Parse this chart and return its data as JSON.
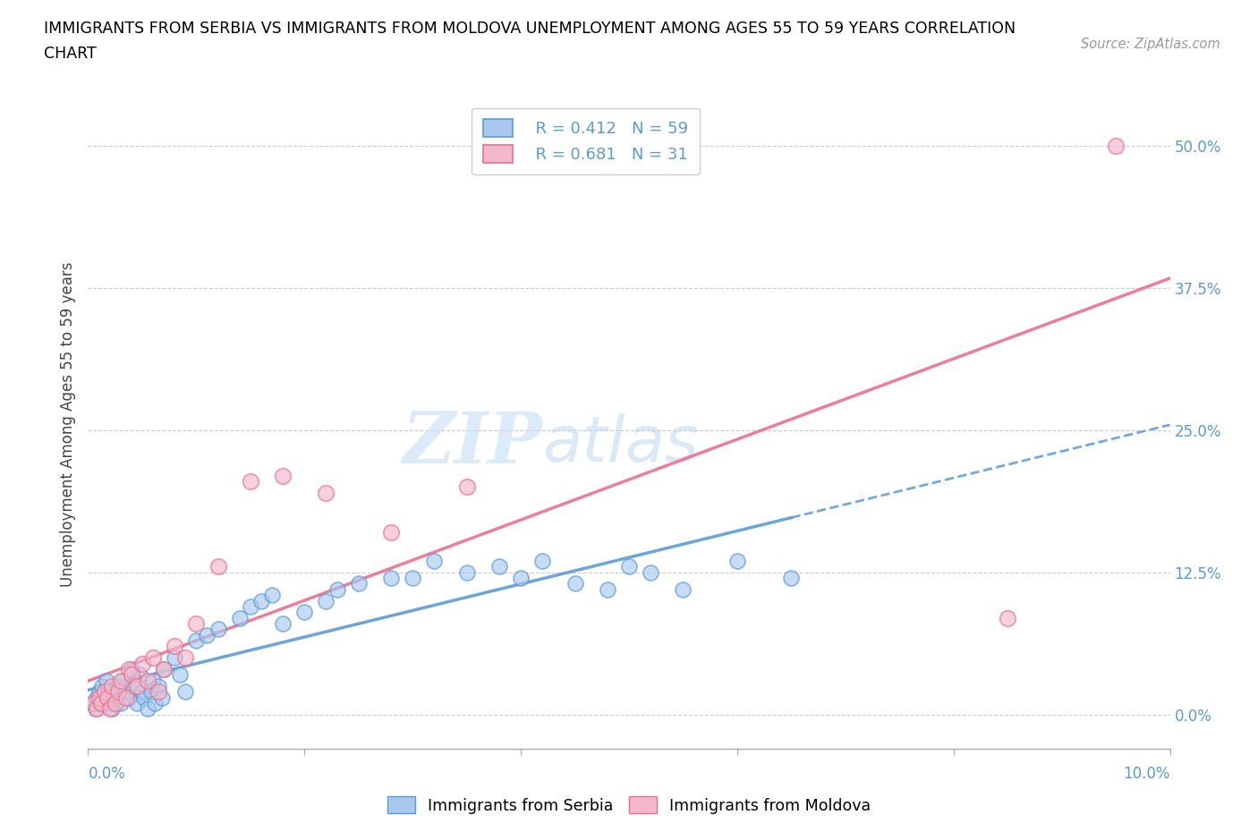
{
  "title_line1": "IMMIGRANTS FROM SERBIA VS IMMIGRANTS FROM MOLDOVA UNEMPLOYMENT AMONG AGES 55 TO 59 YEARS CORRELATION",
  "title_line2": "CHART",
  "source": "Source: ZipAtlas.com",
  "ylabel": "Unemployment Among Ages 55 to 59 years",
  "ytick_vals": [
    0.0,
    12.5,
    25.0,
    37.5,
    50.0
  ],
  "xlim": [
    0.0,
    10.0
  ],
  "ylim": [
    -3.0,
    54.0
  ],
  "watermark_zip": "ZIP",
  "watermark_atlas": "atlas",
  "legend_serbia_R": "R = 0.412",
  "legend_serbia_N": "N = 59",
  "legend_moldova_R": "R = 0.681",
  "legend_moldova_N": "N = 31",
  "color_serbia": "#a8c8f0",
  "color_moldova": "#f4b8cb",
  "color_serbia_line": "#5b9bd5",
  "color_moldova_line": "#e87090",
  "serbia_x": [
    0.05,
    0.07,
    0.08,
    0.1,
    0.12,
    0.13,
    0.15,
    0.17,
    0.18,
    0.2,
    0.22,
    0.25,
    0.27,
    0.3,
    0.32,
    0.35,
    0.38,
    0.4,
    0.42,
    0.45,
    0.48,
    0.5,
    0.52,
    0.55,
    0.58,
    0.6,
    0.62,
    0.65,
    0.68,
    0.7,
    0.8,
    0.85,
    0.9,
    1.0,
    1.1,
    1.2,
    1.4,
    1.5,
    1.6,
    1.7,
    1.8,
    2.0,
    2.2,
    2.3,
    2.5,
    2.8,
    3.0,
    3.2,
    3.5,
    3.8,
    4.0,
    4.2,
    4.5,
    4.8,
    5.0,
    5.2,
    5.5,
    6.0,
    6.5
  ],
  "serbia_y": [
    1.0,
    0.5,
    1.5,
    2.0,
    1.0,
    2.5,
    1.5,
    3.0,
    2.0,
    1.0,
    0.5,
    1.5,
    2.5,
    1.0,
    3.0,
    2.0,
    1.5,
    4.0,
    2.5,
    1.0,
    3.5,
    2.0,
    1.5,
    0.5,
    2.0,
    3.0,
    1.0,
    2.5,
    1.5,
    4.0,
    5.0,
    3.5,
    2.0,
    6.5,
    7.0,
    7.5,
    8.5,
    9.5,
    10.0,
    10.5,
    8.0,
    9.0,
    10.0,
    11.0,
    11.5,
    12.0,
    12.0,
    13.5,
    12.5,
    13.0,
    12.0,
    13.5,
    11.5,
    11.0,
    13.0,
    12.5,
    11.0,
    13.5,
    12.0
  ],
  "moldova_x": [
    0.05,
    0.08,
    0.1,
    0.12,
    0.15,
    0.18,
    0.2,
    0.22,
    0.25,
    0.28,
    0.3,
    0.35,
    0.38,
    0.4,
    0.45,
    0.5,
    0.55,
    0.6,
    0.65,
    0.7,
    0.8,
    0.9,
    1.0,
    1.2,
    1.5,
    1.8,
    2.2,
    2.8,
    3.5,
    8.5,
    9.5
  ],
  "moldova_y": [
    1.0,
    0.5,
    1.5,
    1.0,
    2.0,
    1.5,
    0.5,
    2.5,
    1.0,
    2.0,
    3.0,
    1.5,
    4.0,
    3.5,
    2.5,
    4.5,
    3.0,
    5.0,
    2.0,
    4.0,
    6.0,
    5.0,
    8.0,
    13.0,
    20.5,
    21.0,
    19.5,
    16.0,
    20.0,
    8.5,
    50.0
  ]
}
